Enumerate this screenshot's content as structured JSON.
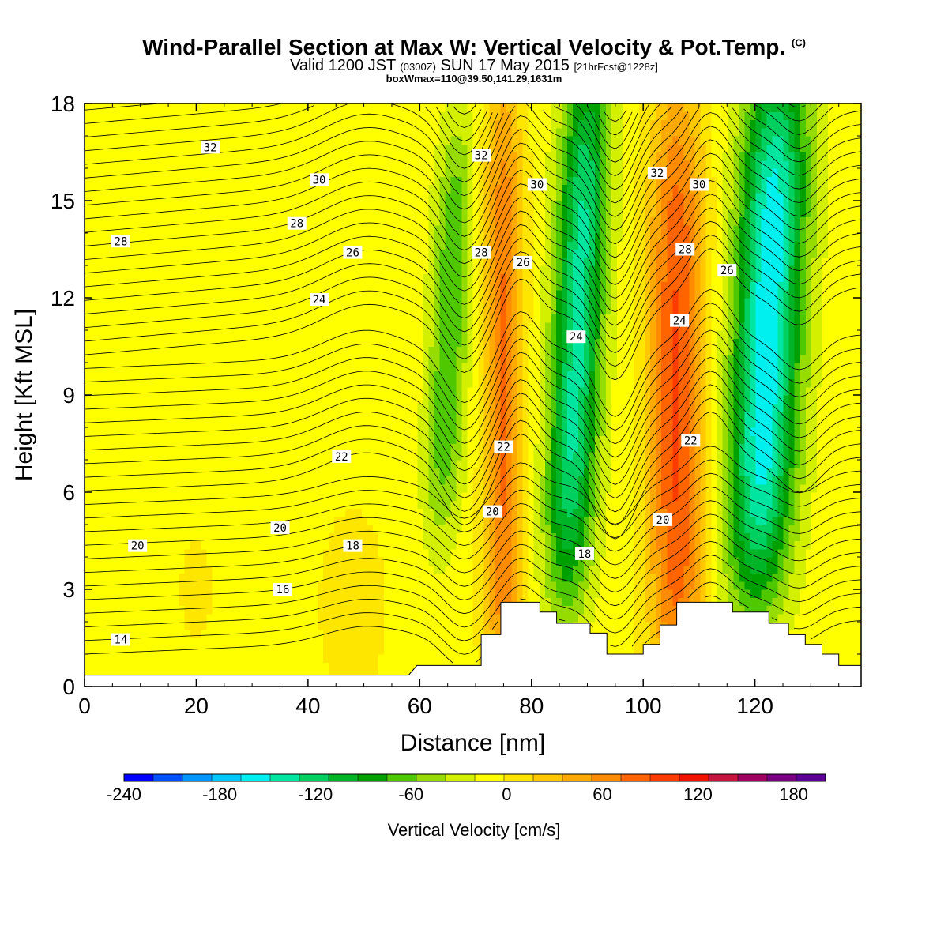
{
  "title": {
    "main": "Wind-Parallel Section at Max W: Vertical Velocity & Pot.Temp.",
    "copyright": "(C)",
    "valid_prefix": "Valid 1200 JST",
    "valid_utc": "(0300Z)",
    "valid_date": "SUN 17 May 2015",
    "forecast": "[21hrFcst@1228z]",
    "box_info": "boxWmax=110@39.50,141.29,1631m"
  },
  "chart_data": {
    "type": "heatmap",
    "xlabel": "Distance [nm]",
    "ylabel": "Height [Kft MSL]",
    "xlim": [
      0,
      139
    ],
    "ylim": [
      0,
      18
    ],
    "xticks": [
      0,
      20,
      40,
      60,
      80,
      100,
      120
    ],
    "yticks": [
      0,
      3,
      6,
      9,
      12,
      15,
      18
    ],
    "colorbar": {
      "label": "Vertical Velocity [cm/s]",
      "min": -240,
      "max": 200,
      "step": 20,
      "tick_labels": [
        -240,
        -180,
        -120,
        -60,
        0,
        60,
        120,
        180
      ],
      "colors": [
        "#0000ff",
        "#0050ff",
        "#0096ff",
        "#00c8ff",
        "#00f0f0",
        "#00e6a0",
        "#00d060",
        "#00b428",
        "#00a000",
        "#50c800",
        "#96dc00",
        "#d2f000",
        "#ffff00",
        "#ffe600",
        "#ffc800",
        "#ffaa00",
        "#ff8c00",
        "#ff6400",
        "#ff3c00",
        "#f01400",
        "#c81440",
        "#a00060",
        "#780080",
        "#5a0096"
      ]
    },
    "wmax_cm_s": 110,
    "vertical_velocity_features": [
      {
        "type": "updraft",
        "x_center": 75,
        "x_width": 7,
        "peak_cm_s": 90,
        "z_range_kft": [
          0,
          18
        ]
      },
      {
        "type": "downdraft",
        "x_center": 88,
        "x_width": 9,
        "peak_cm_s": -140,
        "z_range_kft": [
          3,
          18
        ]
      },
      {
        "type": "updraft",
        "x_center": 106,
        "x_width": 10,
        "peak_cm_s": 110,
        "z_range_kft": [
          1,
          18
        ]
      },
      {
        "type": "downdraft",
        "x_center": 122,
        "x_width": 12,
        "peak_cm_s": -170,
        "z_range_kft": [
          3,
          18
        ]
      },
      {
        "type": "downdraft",
        "x_center": 65,
        "x_width": 7,
        "peak_cm_s": -70,
        "z_range_kft": [
          7,
          18
        ]
      }
    ],
    "theta_contour_labels": [
      {
        "value": "32",
        "x": 22.5,
        "y": 16.65
      },
      {
        "value": "30",
        "x": 42,
        "y": 15.65
      },
      {
        "value": "28",
        "x": 6.5,
        "y": 13.75
      },
      {
        "value": "28",
        "x": 38,
        "y": 14.3
      },
      {
        "value": "26",
        "x": 48,
        "y": 13.4
      },
      {
        "value": "24",
        "x": 42,
        "y": 11.95
      },
      {
        "value": "22",
        "x": 46,
        "y": 7.1
      },
      {
        "value": "20",
        "x": 35,
        "y": 4.9
      },
      {
        "value": "20",
        "x": 9.5,
        "y": 4.35
      },
      {
        "value": "18",
        "x": 48,
        "y": 4.35
      },
      {
        "value": "16",
        "x": 35.5,
        "y": 3.0
      },
      {
        "value": "14",
        "x": 6.5,
        "y": 1.45
      },
      {
        "value": "32",
        "x": 71,
        "y": 16.4
      },
      {
        "value": "30",
        "x": 81,
        "y": 15.5
      },
      {
        "value": "28",
        "x": 71,
        "y": 13.4
      },
      {
        "value": "26",
        "x": 78.5,
        "y": 13.1
      },
      {
        "value": "24",
        "x": 88,
        "y": 10.8
      },
      {
        "value": "22",
        "x": 75,
        "y": 7.4
      },
      {
        "value": "20",
        "x": 73,
        "y": 5.4
      },
      {
        "value": "18",
        "x": 89.5,
        "y": 4.1
      },
      {
        "value": "32",
        "x": 102.5,
        "y": 15.85
      },
      {
        "value": "30",
        "x": 110,
        "y": 15.5
      },
      {
        "value": "28",
        "x": 107.5,
        "y": 13.5
      },
      {
        "value": "26",
        "x": 115,
        "y": 12.85
      },
      {
        "value": "24",
        "x": 106.5,
        "y": 11.3
      },
      {
        "value": "22",
        "x": 108.5,
        "y": 7.6
      },
      {
        "value": "20",
        "x": 103.5,
        "y": 5.15
      }
    ],
    "terrain_profile_kft": [
      [
        0,
        0.35
      ],
      [
        52,
        0.35
      ],
      [
        58,
        0.35
      ],
      [
        59.5,
        0.65
      ],
      [
        71,
        0.65
      ],
      [
        71,
        1.6
      ],
      [
        74.5,
        1.6
      ],
      [
        74.5,
        2.6
      ],
      [
        81.5,
        2.6
      ],
      [
        81.5,
        2.3
      ],
      [
        84.5,
        2.3
      ],
      [
        84.5,
        1.95
      ],
      [
        90.5,
        1.95
      ],
      [
        90.5,
        1.65
      ],
      [
        93.5,
        1.65
      ],
      [
        93.5,
        1.0
      ],
      [
        100,
        1.0
      ],
      [
        100,
        1.3
      ],
      [
        103,
        1.3
      ],
      [
        103,
        1.9
      ],
      [
        106,
        1.9
      ],
      [
        106,
        2.6
      ],
      [
        116,
        2.6
      ],
      [
        116,
        2.3
      ],
      [
        122.5,
        2.3
      ],
      [
        122.5,
        1.95
      ],
      [
        126,
        1.95
      ],
      [
        126,
        1.6
      ],
      [
        129,
        1.6
      ],
      [
        129,
        1.3
      ],
      [
        132,
        1.3
      ],
      [
        132,
        1.0
      ],
      [
        135,
        1.0
      ],
      [
        135,
        0.65
      ],
      [
        139,
        0.65
      ]
    ]
  }
}
